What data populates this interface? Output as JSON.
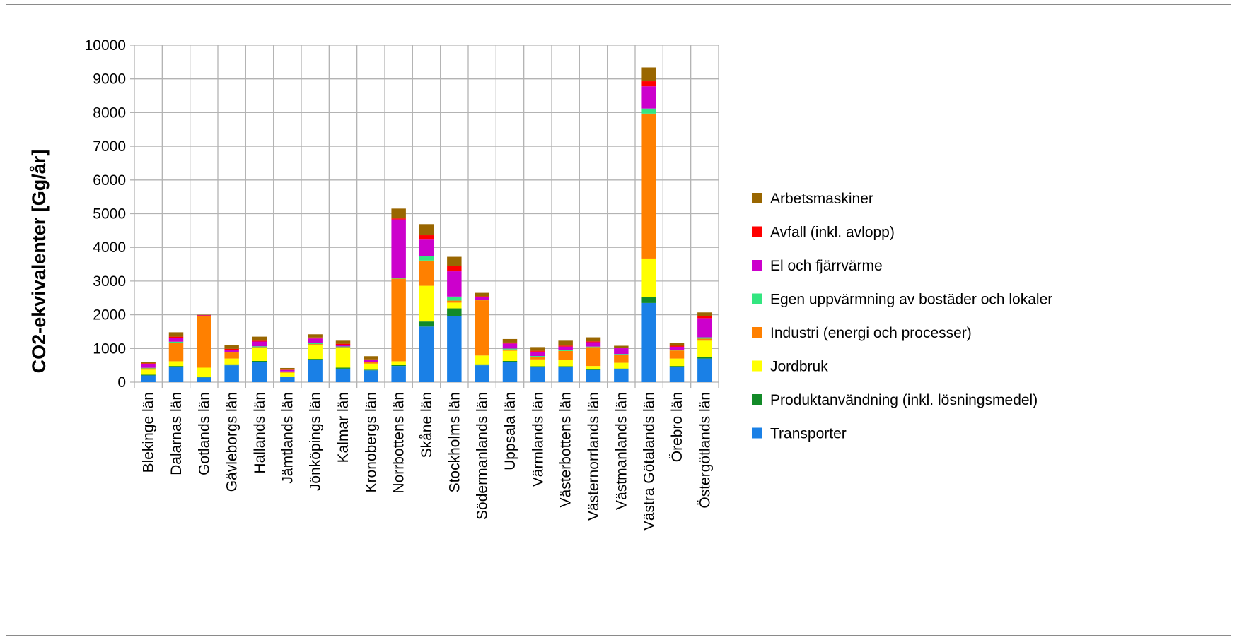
{
  "chart_data": {
    "type": "bar",
    "stacked": true,
    "title": "",
    "xlabel": "",
    "ylabel": "CO2-ekvivalenter [Gg/år]",
    "ylim": [
      0,
      10000
    ],
    "yticks": [
      0,
      1000,
      2000,
      3000,
      4000,
      5000,
      6000,
      7000,
      8000,
      9000,
      10000
    ],
    "grid": "major, both axes",
    "legend_position": "right",
    "categories": [
      "Blekinge län",
      "Dalarnas län",
      "Gotlands län",
      "Gävleborgs län",
      "Hallands län",
      "Jämtlands län",
      "Jönköpings län",
      "Kalmar län",
      "Kronobergs län",
      "Norrbottens län",
      "Skåne län",
      "Stockholms län",
      "Södermanlands län",
      "Uppsala län",
      "Värmlands län",
      "Västerbottens län",
      "Västernorrlands län",
      "Västmanlands län",
      "Västra Götalands län",
      "Örebro län",
      "Östergötlands län"
    ],
    "series": [
      {
        "name": "Transporter",
        "color": "#1a80e6",
        "values": [
          200,
          450,
          140,
          500,
          600,
          160,
          650,
          400,
          350,
          480,
          1650,
          1950,
          500,
          600,
          450,
          450,
          360,
          380,
          2350,
          450,
          700
        ]
      },
      {
        "name": "Produktanvändning (inkl. lösningsmedel)",
        "color": "#128a28",
        "values": [
          20,
          30,
          10,
          30,
          30,
          10,
          40,
          30,
          20,
          40,
          150,
          240,
          30,
          30,
          25,
          25,
          20,
          25,
          170,
          30,
          50
        ]
      },
      {
        "name": "Jordbruk",
        "color": "#ffff00",
        "values": [
          150,
          140,
          280,
          170,
          380,
          110,
          400,
          580,
          180,
          100,
          1060,
          170,
          260,
          300,
          200,
          190,
          100,
          170,
          1150,
          220,
          480
        ]
      },
      {
        "name": "Industri (energi och processer)",
        "color": "#ff8000",
        "values": [
          40,
          550,
          1530,
          180,
          30,
          30,
          40,
          30,
          40,
          2450,
          750,
          60,
          1640,
          40,
          80,
          260,
          560,
          240,
          4300,
          240,
          60
        ]
      },
      {
        "name": "Egen uppvärmning av bostäder och lokaler",
        "color": "#33e680",
        "values": [
          15,
          30,
          10,
          20,
          25,
          10,
          25,
          20,
          15,
          20,
          140,
          120,
          20,
          25,
          20,
          20,
          15,
          20,
          150,
          20,
          40
        ]
      },
      {
        "name": "El och fjärrvärme",
        "color": "#cc00cc",
        "values": [
          120,
          120,
          10,
          60,
          140,
          40,
          140,
          50,
          50,
          1740,
          480,
          750,
          70,
          150,
          130,
          110,
          130,
          170,
          660,
          90,
          570
        ]
      },
      {
        "name": "Avfall (inkl. avlopp)",
        "color": "#ff0000",
        "values": [
          15,
          30,
          10,
          30,
          25,
          10,
          30,
          30,
          20,
          30,
          130,
          150,
          30,
          30,
          25,
          30,
          25,
          20,
          150,
          30,
          50
        ]
      },
      {
        "name": "Arbetsmaskiner",
        "color": "#996600",
        "values": [
          40,
          130,
          10,
          110,
          120,
          50,
          95,
          90,
          95,
          290,
          330,
          280,
          100,
          105,
          110,
          145,
          120,
          55,
          410,
          90,
          120
        ]
      }
    ]
  },
  "legend_order": [
    "Arbetsmaskiner",
    "Avfall (inkl. avlopp)",
    "El och fjärrvärme",
    "Egen uppvärmning av bostäder och lokaler",
    "Industri (energi och processer)",
    "Jordbruk",
    "Produktanvändning (inkl. lösningsmedel)",
    "Transporter"
  ],
  "colors": {
    "grid": "#b3b3b3",
    "axis": "#b3b3b3",
    "frame_border": "#8a8a8a"
  }
}
